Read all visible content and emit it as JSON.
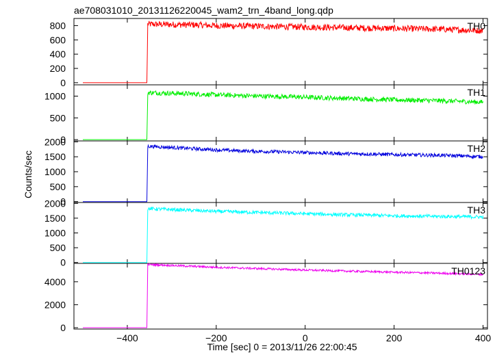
{
  "chart_data": {
    "type": "line",
    "title": "ae708031010_20131126220045_wam2_trn_4band_long.qdp",
    "xlabel": "Time [sec] 0 = 2013/11/26 22:00:45",
    "ylabel": "Counts/sec",
    "xlim": [
      -520,
      410
    ],
    "xticks": [
      -400,
      -200,
      0,
      200,
      400
    ],
    "grid": false,
    "panels": [
      {
        "name": "TH0",
        "color": "#ff0000",
        "ylim": [
          -30,
          900
        ],
        "yticks": [
          0,
          200,
          400,
          600,
          800
        ],
        "x": [
          -500,
          -356,
          -354,
          -350,
          -300,
          -250,
          -200,
          -150,
          -100,
          -50,
          0,
          50,
          100,
          150,
          200,
          250,
          300,
          350,
          400
        ],
        "y": [
          0,
          0,
          820,
          820,
          815,
          810,
          800,
          795,
          790,
          785,
          780,
          775,
          770,
          765,
          760,
          755,
          750,
          740,
          730
        ],
        "noise": 45
      },
      {
        "name": "TH1",
        "color": "#00ee00",
        "ylim": [
          -30,
          1260
        ],
        "yticks": [
          0,
          500,
          1000
        ],
        "x": [
          -500,
          -356,
          -354,
          -350,
          -300,
          -250,
          -200,
          -150,
          -100,
          -50,
          0,
          50,
          100,
          150,
          200,
          250,
          300,
          350,
          400
        ],
        "y": [
          0,
          0,
          1080,
          1080,
          1065,
          1050,
          1030,
          1015,
          1000,
          990,
          975,
          960,
          945,
          930,
          915,
          905,
          895,
          880,
          860
        ],
        "noise": 55
      },
      {
        "name": "TH2",
        "color": "#0000dd",
        "ylim": [
          -30,
          2030
        ],
        "yticks": [
          0,
          500,
          1000,
          1500,
          2000
        ],
        "x": [
          -500,
          -356,
          -354,
          -350,
          -300,
          -250,
          -200,
          -150,
          -100,
          -50,
          0,
          50,
          100,
          150,
          200,
          250,
          300,
          350,
          400
        ],
        "y": [
          0,
          0,
          1850,
          1850,
          1810,
          1770,
          1730,
          1700,
          1680,
          1660,
          1640,
          1620,
          1600,
          1590,
          1570,
          1560,
          1550,
          1530,
          1500
        ],
        "noise": 60
      },
      {
        "name": "TH3",
        "color": "#00ffff",
        "ylim": [
          -30,
          2030
        ],
        "yticks": [
          0,
          500,
          1000,
          1500,
          2000
        ],
        "x": [
          -500,
          -356,
          -354,
          -350,
          -300,
          -250,
          -200,
          -150,
          -100,
          -50,
          0,
          50,
          100,
          150,
          200,
          250,
          300,
          350,
          400
        ],
        "y": [
          0,
          0,
          1820,
          1820,
          1790,
          1760,
          1730,
          1710,
          1690,
          1670,
          1650,
          1630,
          1610,
          1600,
          1580,
          1570,
          1560,
          1550,
          1540
        ],
        "noise": 60
      },
      {
        "name": "TH0123",
        "color": "#ee00ee",
        "ylim": [
          -120,
          5600
        ],
        "yticks": [
          0,
          2000,
          4000
        ],
        "x": [
          -500,
          -356,
          -354,
          -350,
          -300,
          -250,
          -200,
          -150,
          -100,
          -50,
          0,
          50,
          100,
          150,
          200,
          250,
          300,
          350,
          400
        ],
        "y": [
          0,
          0,
          5500,
          5500,
          5420,
          5340,
          5260,
          5200,
          5140,
          5080,
          5020,
          4970,
          4920,
          4880,
          4830,
          4790,
          4750,
          4690,
          4640
        ],
        "noise": 90
      }
    ]
  }
}
